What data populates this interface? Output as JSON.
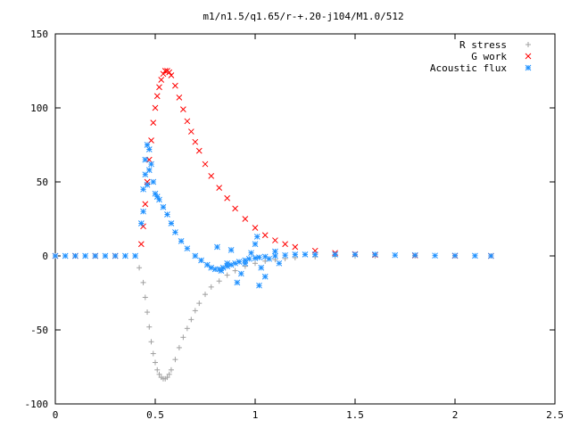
{
  "chart_data": {
    "type": "scatter",
    "title": "m1/n1.5/q1.65/r-+.20-j104/M1.0/512",
    "xlabel": "",
    "ylabel": "",
    "xlim": [
      0,
      2.5
    ],
    "ylim": [
      -100,
      150
    ],
    "xticks": [
      0,
      0.5,
      1,
      1.5,
      2,
      2.5
    ],
    "yticks": [
      -100,
      -50,
      0,
      50,
      100,
      150
    ],
    "xtick_labels": [
      "0",
      "0.5",
      "1",
      "1.5",
      "2",
      "2.5"
    ],
    "ytick_labels": [
      "-100",
      "-50",
      "0",
      "50",
      "100",
      "150"
    ],
    "grid": false,
    "legend_position": "top-right",
    "series": [
      {
        "name": "R stress",
        "marker": "plus",
        "color": "#a0a0a0",
        "x": [
          0.0,
          0.1,
          0.2,
          0.3,
          0.42,
          0.44,
          0.45,
          0.46,
          0.47,
          0.48,
          0.49,
          0.5,
          0.51,
          0.52,
          0.53,
          0.54,
          0.55,
          0.56,
          0.57,
          0.58,
          0.6,
          0.62,
          0.64,
          0.66,
          0.68,
          0.7,
          0.72,
          0.75,
          0.78,
          0.82,
          0.86,
          0.9,
          0.95,
          1.0,
          1.05,
          1.1,
          1.15,
          1.2,
          1.3,
          1.4,
          1.5,
          1.6,
          1.8,
          2.0,
          2.18
        ],
        "y": [
          0,
          0,
          0,
          0,
          -8,
          -18,
          -28,
          -38,
          -48,
          -58,
          -66,
          -72,
          -77,
          -80,
          -82,
          -83,
          -83,
          -82,
          -80,
          -77,
          -70,
          -62,
          -55,
          -49,
          -43,
          -37,
          -32,
          -26,
          -21,
          -17,
          -13,
          -10,
          -7,
          -5,
          -3.5,
          -2.5,
          -1.8,
          -1.2,
          -0.6,
          -0.3,
          -0.1,
          0,
          0,
          0,
          0
        ]
      },
      {
        "name": "G work",
        "marker": "cross",
        "color": "#ff0000",
        "x": [
          0.0,
          0.1,
          0.2,
          0.3,
          0.43,
          0.44,
          0.45,
          0.46,
          0.47,
          0.48,
          0.49,
          0.5,
          0.51,
          0.52,
          0.53,
          0.54,
          0.55,
          0.56,
          0.57,
          0.58,
          0.6,
          0.62,
          0.64,
          0.66,
          0.68,
          0.7,
          0.72,
          0.75,
          0.78,
          0.82,
          0.86,
          0.9,
          0.95,
          1.0,
          1.05,
          1.1,
          1.15,
          1.2,
          1.3,
          1.4,
          1.5,
          1.6,
          1.8,
          2.0,
          2.18
        ],
        "y": [
          0,
          0,
          0,
          0,
          8,
          20,
          35,
          50,
          65,
          78,
          90,
          100,
          108,
          114,
          119,
          123,
          125,
          125,
          124,
          122,
          115,
          107,
          99,
          91,
          84,
          77,
          71,
          62,
          54,
          46,
          39,
          32,
          25,
          19,
          14,
          10.5,
          8,
          6,
          3.5,
          2,
          1.2,
          0.7,
          0.3,
          0.1,
          0
        ]
      },
      {
        "name": "Acoustic flux",
        "marker": "star",
        "color": "#1e90ff",
        "x": [
          0.0,
          0.05,
          0.1,
          0.15,
          0.2,
          0.25,
          0.3,
          0.35,
          0.4,
          0.43,
          0.44,
          0.44,
          0.45,
          0.45,
          0.46,
          0.46,
          0.47,
          0.47,
          0.48,
          0.49,
          0.5,
          0.51,
          0.52,
          0.54,
          0.56,
          0.58,
          0.6,
          0.63,
          0.66,
          0.7,
          0.73,
          0.76,
          0.78,
          0.8,
          0.82,
          0.84,
          0.86,
          0.88,
          0.9,
          0.92,
          0.95,
          0.97,
          1.0,
          1.02,
          1.05,
          1.1,
          1.15,
          1.2,
          1.25,
          1.3,
          1.4,
          1.5,
          1.6,
          1.7,
          1.8,
          1.9,
          2.0,
          2.1,
          2.18,
          0.81,
          0.83,
          0.86,
          0.88,
          0.91,
          0.93,
          0.95,
          0.98,
          1.0,
          1.01,
          1.02,
          1.03,
          1.05,
          1.07,
          1.1,
          1.12
        ],
        "y": [
          0,
          0,
          0,
          0,
          0,
          0,
          0,
          0,
          0,
          22,
          45,
          30,
          65,
          55,
          75,
          48,
          72,
          58,
          62,
          50,
          42,
          40,
          38,
          33,
          28,
          22,
          16,
          10,
          5,
          0,
          -3,
          -6,
          -8,
          -9,
          -9,
          -8,
          -7,
          -6,
          -5,
          -4,
          -3,
          -2,
          -1.5,
          -1,
          -0.5,
          0,
          0.5,
          1,
          1,
          1,
          1,
          1,
          1,
          0.5,
          0.5,
          0.2,
          0.2,
          0.1,
          0,
          6,
          -10,
          -5,
          4,
          -18,
          -12,
          -5,
          2,
          8,
          13,
          -20,
          -8,
          -14,
          -2,
          3,
          -5
        ]
      }
    ]
  }
}
